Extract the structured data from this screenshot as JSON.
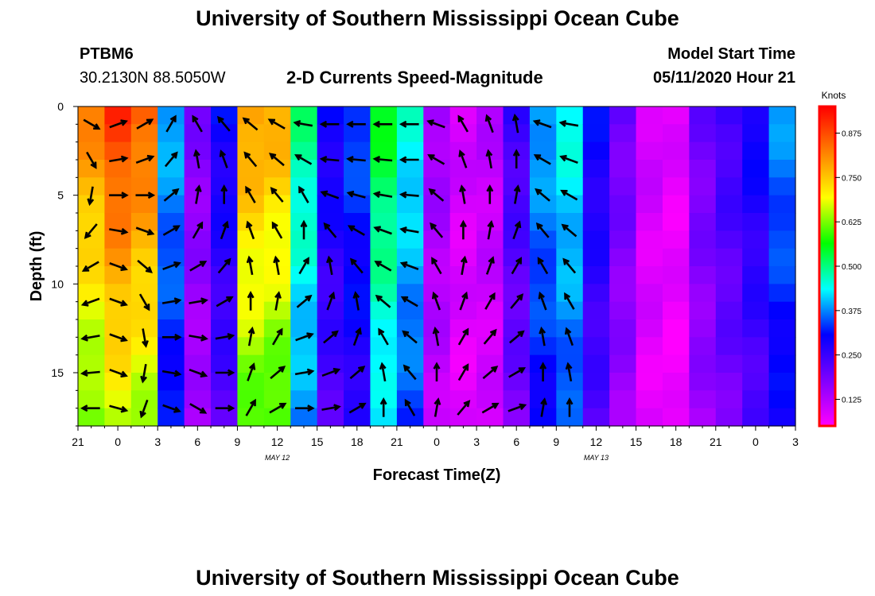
{
  "header": {
    "title_top": "University of Southern Mississippi Ocean Cube",
    "title_bottom": "University of Southern Mississippi Ocean Cube",
    "station_id": "PTBM6",
    "station_coords": "30.2130N 88.5050W",
    "plot_title": "2-D Currents Speed-Magnitude",
    "model_label": "Model Start Time",
    "model_time": "05/11/2020 Hour 21"
  },
  "chart_data": {
    "type": "heatmap",
    "title": "2-D Currents Speed-Magnitude",
    "xlabel": "Forecast Time(Z)",
    "ylabel": "Depth (ft)",
    "ylim": [
      0,
      18
    ],
    "y_ticks": [
      0,
      5,
      10,
      15
    ],
    "x_ticks": [
      "21",
      "0",
      "3",
      "6",
      "9",
      "12",
      "15",
      "18",
      "21",
      "0",
      "3",
      "6",
      "9",
      "12",
      "15",
      "18",
      "21",
      "0",
      "3"
    ],
    "date_labels": [
      {
        "text": "MAY 12",
        "tick_index": 5
      },
      {
        "text": "MAY 13",
        "tick_index": 13
      }
    ],
    "colorbar": {
      "label": "Knots",
      "ticks": [
        0.125,
        0.25,
        0.375,
        0.5,
        0.625,
        0.75,
        0.875
      ],
      "tick_labels": [
        "0.125",
        "0.250",
        "0.375",
        "0.500",
        "0.625",
        "0.750",
        "0.875"
      ],
      "range": [
        0.05,
        0.95
      ],
      "colors": [
        "#ff00ff",
        "#7f00ff",
        "#0000ff",
        "#00ffff",
        "#00ff00",
        "#ffff00",
        "#ff8000",
        "#ff0000"
      ]
    },
    "profile_speed_knots": [
      0.82,
      0.9,
      0.86,
      0.4,
      0.18,
      0.3,
      0.8,
      0.78,
      0.5,
      0.3,
      0.35,
      0.55,
      0.45,
      0.15,
      0.1,
      0.12,
      0.25,
      0.4,
      0.45,
      0.3,
      0.2,
      0.1,
      0.08,
      0.2,
      0.25,
      0.3,
      0.38
    ],
    "vectors": {
      "columns_hours": [
        1,
        3,
        5,
        7,
        9,
        11,
        13,
        15,
        17,
        19,
        21,
        23,
        25,
        27,
        29,
        31,
        33,
        35,
        37
      ],
      "depths_ft": [
        1,
        3,
        5,
        7,
        9,
        11,
        13,
        15,
        17
      ],
      "direction_deg": [
        [
          -30,
          -60,
          -100,
          -130,
          -150,
          -160,
          -170,
          -175,
          -180
        ],
        [
          20,
          10,
          0,
          -10,
          -20,
          -20,
          -20,
          -20,
          -15
        ],
        [
          30,
          20,
          0,
          -20,
          -40,
          -60,
          -80,
          -100,
          -110
        ],
        [
          60,
          50,
          40,
          30,
          20,
          10,
          0,
          -10,
          -20
        ],
        [
          120,
          100,
          80,
          60,
          30,
          10,
          -10,
          -20,
          -30
        ],
        [
          130,
          110,
          90,
          70,
          50,
          30,
          10,
          0,
          0
        ],
        [
          140,
          130,
          120,
          110,
          100,
          90,
          80,
          70,
          60
        ],
        [
          150,
          140,
          130,
          120,
          100,
          80,
          60,
          40,
          30
        ],
        [
          170,
          150,
          120,
          90,
          60,
          40,
          20,
          10,
          0
        ],
        [
          180,
          175,
          160,
          130,
          100,
          70,
          40,
          20,
          10
        ],
        [
          180,
          175,
          165,
          150,
          130,
          100,
          70,
          40,
          30
        ],
        [
          180,
          175,
          170,
          160,
          150,
          140,
          120,
          100,
          90
        ],
        [
          180,
          180,
          175,
          170,
          160,
          150,
          140,
          130,
          120
        ],
        [
          160,
          150,
          140,
          130,
          120,
          110,
          100,
          90,
          80
        ],
        [
          120,
          110,
          100,
          90,
          80,
          70,
          60,
          60,
          50
        ],
        [
          110,
          100,
          90,
          80,
          70,
          60,
          50,
          40,
          30
        ],
        [
          100,
          90,
          80,
          70,
          60,
          50,
          40,
          30,
          20
        ],
        [
          160,
          150,
          140,
          130,
          120,
          110,
          100,
          90,
          80
        ],
        [
          170,
          160,
          150,
          140,
          130,
          120,
          110,
          100,
          90
        ]
      ]
    }
  },
  "colors": {
    "arrow": "#000000",
    "frame": "#000000",
    "colorbar_frame": "#ff0000"
  }
}
